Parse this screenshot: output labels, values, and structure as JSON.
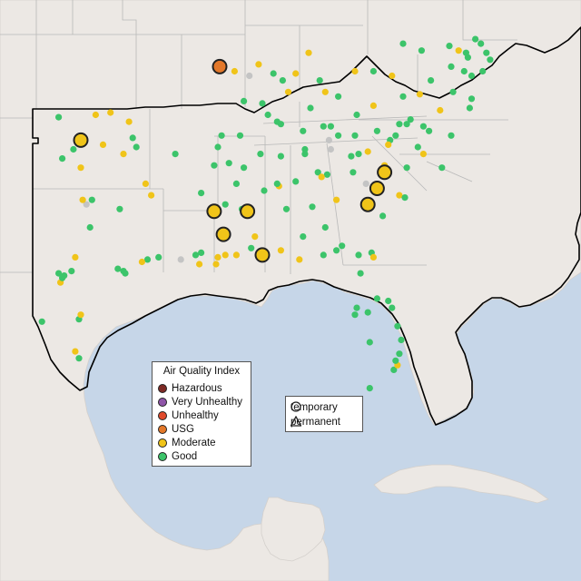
{
  "colors": {
    "water": "#c6d6e8",
    "land": "#ece8e4",
    "region_outline": "#000000",
    "state_border": "#b8b8b8",
    "marker_outline": "#222222"
  },
  "legend": {
    "title": "Air Quality Index",
    "categories": [
      {
        "label": "Hazardous",
        "color": "#7e2a25"
      },
      {
        "label": "Very Unhealthy",
        "color": "#8f55a8"
      },
      {
        "label": "Unhealthy",
        "color": "#e04a2c"
      },
      {
        "label": "USG",
        "color": "#e3782a"
      },
      {
        "label": "Moderate",
        "color": "#f0c419"
      },
      {
        "label": "Good",
        "color": "#3cc46a"
      }
    ]
  },
  "monitor_types": {
    "temporary": {
      "label": "temporary",
      "icon": "circle-icon"
    },
    "permanent": {
      "label": "permanent",
      "icon": "triangle-icon"
    }
  },
  "monitors": [
    {
      "lon": -97.4,
      "lat": 35.4,
      "aqi": "Moderate",
      "type": "temporary"
    },
    {
      "lon": -89.9,
      "lat": 38.6,
      "aqi": "USG",
      "type": "temporary"
    },
    {
      "lon": -81.0,
      "lat": 34.0,
      "aqi": "Moderate",
      "type": "temporary"
    },
    {
      "lon": -81.4,
      "lat": 33.3,
      "aqi": "Moderate",
      "type": "temporary"
    },
    {
      "lon": -81.9,
      "lat": 32.6,
      "aqi": "Moderate",
      "type": "temporary"
    },
    {
      "lon": -90.2,
      "lat": 32.3,
      "aqi": "Moderate",
      "type": "temporary"
    },
    {
      "lon": -88.4,
      "lat": 32.3,
      "aqi": "Moderate",
      "type": "temporary"
    },
    {
      "lon": -89.7,
      "lat": 31.3,
      "aqi": "Moderate",
      "type": "temporary"
    },
    {
      "lon": -87.6,
      "lat": 30.4,
      "aqi": "Moderate",
      "type": "temporary"
    },
    {
      "lon": -96.6,
      "lat": 36.5,
      "aqi": "Moderate"
    },
    {
      "lon": -95.8,
      "lat": 36.6,
      "aqi": "Moderate"
    },
    {
      "lon": -98.6,
      "lat": 36.4,
      "aqi": "Good"
    },
    {
      "lon": -94.8,
      "lat": 36.2,
      "aqi": "Moderate"
    },
    {
      "lon": -97.8,
      "lat": 35.0,
      "aqi": "Good"
    },
    {
      "lon": -96.2,
      "lat": 35.2,
      "aqi": "Moderate"
    },
    {
      "lon": -94.6,
      "lat": 35.5,
      "aqi": "Good"
    },
    {
      "lon": -94.4,
      "lat": 35.1,
      "aqi": "Good"
    },
    {
      "lon": -98.4,
      "lat": 34.6,
      "aqi": "Good"
    },
    {
      "lon": -97.4,
      "lat": 34.2,
      "aqi": "Moderate"
    },
    {
      "lon": -95.1,
      "lat": 34.8,
      "aqi": "Moderate"
    },
    {
      "lon": -92.3,
      "lat": 34.8,
      "aqi": "Good"
    },
    {
      "lon": -93.9,
      "lat": 33.5,
      "aqi": "Moderate"
    },
    {
      "lon": -93.6,
      "lat": 33.0,
      "aqi": "Moderate"
    },
    {
      "lon": -97.3,
      "lat": 32.8,
      "aqi": "Moderate"
    },
    {
      "lon": -97.1,
      "lat": 32.6,
      "aqi": "Unknown"
    },
    {
      "lon": -96.8,
      "lat": 32.8,
      "aqi": "Good"
    },
    {
      "lon": -95.3,
      "lat": 32.4,
      "aqi": "Good"
    },
    {
      "lon": -96.9,
      "lat": 31.6,
      "aqi": "Good"
    },
    {
      "lon": -97.7,
      "lat": 30.3,
      "aqi": "Moderate"
    },
    {
      "lon": -98.3,
      "lat": 29.5,
      "aqi": "Good"
    },
    {
      "lon": -98.4,
      "lat": 29.4,
      "aqi": "Good"
    },
    {
      "lon": -98.6,
      "lat": 29.6,
      "aqi": "Good"
    },
    {
      "lon": -98.5,
      "lat": 29.2,
      "aqi": "Moderate"
    },
    {
      "lon": -97.9,
      "lat": 29.7,
      "aqi": "Good"
    },
    {
      "lon": -95.4,
      "lat": 29.8,
      "aqi": "Good"
    },
    {
      "lon": -95.1,
      "lat": 29.7,
      "aqi": "Good"
    },
    {
      "lon": -95.0,
      "lat": 29.6,
      "aqi": "Good"
    },
    {
      "lon": -94.1,
      "lat": 30.1,
      "aqi": "Moderate"
    },
    {
      "lon": -93.8,
      "lat": 30.2,
      "aqi": "Good"
    },
    {
      "lon": -97.4,
      "lat": 27.8,
      "aqi": "Moderate"
    },
    {
      "lon": -97.5,
      "lat": 27.6,
      "aqi": "Good"
    },
    {
      "lon": -97.7,
      "lat": 26.2,
      "aqi": "Moderate"
    },
    {
      "lon": -97.5,
      "lat": 25.9,
      "aqi": "Good"
    },
    {
      "lon": -99.5,
      "lat": 27.5,
      "aqi": "Good"
    },
    {
      "lon": -93.2,
      "lat": 30.3,
      "aqi": "Good"
    },
    {
      "lon": -92.0,
      "lat": 30.2,
      "aqi": "Unknown"
    },
    {
      "lon": -91.2,
      "lat": 30.4,
      "aqi": "Good"
    },
    {
      "lon": -90.9,
      "lat": 30.5,
      "aqi": "Good"
    },
    {
      "lon": -90.1,
      "lat": 30.0,
      "aqi": "Moderate"
    },
    {
      "lon": -91.0,
      "lat": 30.0,
      "aqi": "Moderate"
    },
    {
      "lon": -90.0,
      "lat": 30.3,
      "aqi": "Moderate"
    },
    {
      "lon": -89.6,
      "lat": 30.4,
      "aqi": "Moderate"
    },
    {
      "lon": -89.0,
      "lat": 30.4,
      "aqi": "Moderate"
    },
    {
      "lon": -88.2,
      "lat": 30.7,
      "aqi": "Good"
    },
    {
      "lon": -88.0,
      "lat": 31.2,
      "aqi": "Moderate"
    },
    {
      "lon": -86.6,
      "lat": 30.6,
      "aqi": "Moderate"
    },
    {
      "lon": -85.6,
      "lat": 30.2,
      "aqi": "Moderate"
    },
    {
      "lon": -84.3,
      "lat": 30.4,
      "aqi": "Good"
    },
    {
      "lon": -83.6,
      "lat": 30.6,
      "aqi": "Good"
    },
    {
      "lon": -82.4,
      "lat": 30.4,
      "aqi": "Good"
    },
    {
      "lon": -81.6,
      "lat": 30.3,
      "aqi": "Moderate"
    },
    {
      "lon": -81.7,
      "lat": 30.5,
      "aqi": "Good"
    },
    {
      "lon": -82.3,
      "lat": 29.6,
      "aqi": "Good"
    },
    {
      "lon": -81.4,
      "lat": 28.5,
      "aqi": "Good"
    },
    {
      "lon": -81.9,
      "lat": 27.9,
      "aqi": "Good"
    },
    {
      "lon": -82.5,
      "lat": 28.1,
      "aqi": "Good"
    },
    {
      "lon": -82.6,
      "lat": 27.8,
      "aqi": "Good"
    },
    {
      "lon": -80.8,
      "lat": 28.4,
      "aqi": "Good"
    },
    {
      "lon": -80.6,
      "lat": 28.1,
      "aqi": "Good"
    },
    {
      "lon": -80.3,
      "lat": 27.3,
      "aqi": "Good"
    },
    {
      "lon": -81.8,
      "lat": 26.6,
      "aqi": "Good"
    },
    {
      "lon": -80.1,
      "lat": 26.7,
      "aqi": "Good"
    },
    {
      "lon": -80.2,
      "lat": 26.1,
      "aqi": "Good"
    },
    {
      "lon": -80.4,
      "lat": 25.8,
      "aqi": "Good"
    },
    {
      "lon": -80.3,
      "lat": 25.6,
      "aqi": "Moderate"
    },
    {
      "lon": -80.5,
      "lat": 25.4,
      "aqi": "Good"
    },
    {
      "lon": -81.8,
      "lat": 24.6,
      "aqi": "Good"
    },
    {
      "lon": -90.2,
      "lat": 34.3,
      "aqi": "Good"
    },
    {
      "lon": -89.4,
      "lat": 34.4,
      "aqi": "Good"
    },
    {
      "lon": -88.6,
      "lat": 34.2,
      "aqi": "Good"
    },
    {
      "lon": -89.0,
      "lat": 33.5,
      "aqi": "Good"
    },
    {
      "lon": -90.9,
      "lat": 33.1,
      "aqi": "Good"
    },
    {
      "lon": -89.6,
      "lat": 32.6,
      "aqi": "Good"
    },
    {
      "lon": -88.7,
      "lat": 32.4,
      "aqi": "Good"
    },
    {
      "lon": -86.8,
      "lat": 33.5,
      "aqi": "Good"
    },
    {
      "lon": -86.7,
      "lat": 33.4,
      "aqi": "Moderate"
    },
    {
      "lon": -87.5,
      "lat": 33.2,
      "aqi": "Good"
    },
    {
      "lon": -86.3,
      "lat": 32.4,
      "aqi": "Good"
    },
    {
      "lon": -85.8,
      "lat": 33.6,
      "aqi": "Good"
    },
    {
      "lon": -86.6,
      "lat": 34.7,
      "aqi": "Good"
    },
    {
      "lon": -87.7,
      "lat": 34.8,
      "aqi": "Good"
    },
    {
      "lon": -85.4,
      "lat": 31.2,
      "aqi": "Good"
    },
    {
      "lon": -84.4,
      "lat": 33.8,
      "aqi": "Moderate"
    },
    {
      "lon": -84.1,
      "lat": 33.9,
      "aqi": "Good"
    },
    {
      "lon": -84.6,
      "lat": 34.0,
      "aqi": "Good"
    },
    {
      "lon": -83.6,
      "lat": 32.8,
      "aqi": "Moderate"
    },
    {
      "lon": -84.9,
      "lat": 32.5,
      "aqi": "Good"
    },
    {
      "lon": -82.0,
      "lat": 33.5,
      "aqi": "Unknown"
    },
    {
      "lon": -81.1,
      "lat": 32.1,
      "aqi": "Good"
    },
    {
      "lon": -84.2,
      "lat": 31.6,
      "aqi": "Good"
    },
    {
      "lon": -83.3,
      "lat": 30.8,
      "aqi": "Good"
    },
    {
      "lon": -85.3,
      "lat": 34.8,
      "aqi": "Good"
    },
    {
      "lon": -86.8,
      "lat": 36.2,
      "aqi": "Good"
    },
    {
      "lon": -86.6,
      "lat": 36.1,
      "aqi": "Good"
    },
    {
      "lon": -90.0,
      "lat": 35.1,
      "aqi": "Good"
    },
    {
      "lon": -89.8,
      "lat": 35.6,
      "aqi": "Good"
    },
    {
      "lon": -88.8,
      "lat": 35.6,
      "aqi": "Good"
    },
    {
      "lon": -87.3,
      "lat": 36.5,
      "aqi": "Good"
    },
    {
      "lon": -85.4,
      "lat": 35.8,
      "aqi": "Good"
    },
    {
      "lon": -85.3,
      "lat": 35.0,
      "aqi": "Good"
    },
    {
      "lon": -83.9,
      "lat": 36.0,
      "aqi": "Good"
    },
    {
      "lon": -83.5,
      "lat": 35.6,
      "aqi": "Good"
    },
    {
      "lon": -82.5,
      "lat": 36.5,
      "aqi": "Good"
    },
    {
      "lon": -84.3,
      "lat": 36.0,
      "aqi": "Good"
    },
    {
      "lon": -82.6,
      "lat": 35.6,
      "aqi": "Good"
    },
    {
      "lon": -83.9,
      "lat": 35.0,
      "aqi": "Unknown"
    },
    {
      "lon": -84.0,
      "lat": 35.4,
      "aqi": "Unknown"
    },
    {
      "lon": -85.8,
      "lat": 38.3,
      "aqi": "Moderate"
    },
    {
      "lon": -84.5,
      "lat": 38.0,
      "aqi": "Good"
    },
    {
      "lon": -86.2,
      "lat": 37.5,
      "aqi": "Moderate"
    },
    {
      "lon": -87.6,
      "lat": 37.0,
      "aqi": "Good"
    },
    {
      "lon": -88.6,
      "lat": 37.1,
      "aqi": "Good"
    },
    {
      "lon": -83.5,
      "lat": 37.3,
      "aqi": "Good"
    },
    {
      "lon": -82.6,
      "lat": 38.4,
      "aqi": "Moderate"
    },
    {
      "lon": -84.2,
      "lat": 37.5,
      "aqi": "Moderate"
    },
    {
      "lon": -85.0,
      "lat": 36.8,
      "aqi": "Good"
    },
    {
      "lon": -89.1,
      "lat": 38.4,
      "aqi": "Moderate"
    },
    {
      "lon": -87.8,
      "lat": 38.7,
      "aqi": "Moderate"
    },
    {
      "lon": -86.5,
      "lat": 38.0,
      "aqi": "Good"
    },
    {
      "lon": -85.1,
      "lat": 39.2,
      "aqi": "Moderate"
    },
    {
      "lon": -87.0,
      "lat": 38.3,
      "aqi": "Good"
    },
    {
      "lon": -88.3,
      "lat": 38.2,
      "aqi": "Unknown"
    },
    {
      "lon": -81.6,
      "lat": 38.4,
      "aqi": "Good"
    },
    {
      "lon": -80.6,
      "lat": 38.2,
      "aqi": "Moderate"
    },
    {
      "lon": -80.0,
      "lat": 39.6,
      "aqi": "Good"
    },
    {
      "lon": -79.0,
      "lat": 39.3,
      "aqi": "Good"
    },
    {
      "lon": -77.5,
      "lat": 39.5,
      "aqi": "Good"
    },
    {
      "lon": -77.0,
      "lat": 39.3,
      "aqi": "Moderate"
    },
    {
      "lon": -76.6,
      "lat": 39.2,
      "aqi": "Good"
    },
    {
      "lon": -76.5,
      "lat": 39.0,
      "aqi": "Good"
    },
    {
      "lon": -75.5,
      "lat": 39.2,
      "aqi": "Good"
    },
    {
      "lon": -75.3,
      "lat": 38.9,
      "aqi": "Good"
    },
    {
      "lon": -77.4,
      "lat": 38.6,
      "aqi": "Good"
    },
    {
      "lon": -77.3,
      "lat": 37.5,
      "aqi": "Good"
    },
    {
      "lon": -76.3,
      "lat": 37.2,
      "aqi": "Good"
    },
    {
      "lon": -78.5,
      "lat": 38.0,
      "aqi": "Good"
    },
    {
      "lon": -80.0,
      "lat": 37.3,
      "aqi": "Good"
    },
    {
      "lon": -79.1,
      "lat": 37.4,
      "aqi": "Moderate"
    },
    {
      "lon": -81.6,
      "lat": 36.9,
      "aqi": "Moderate"
    },
    {
      "lon": -78.0,
      "lat": 36.7,
      "aqi": "Moderate"
    },
    {
      "lon": -76.4,
      "lat": 36.8,
      "aqi": "Good"
    },
    {
      "lon": -80.2,
      "lat": 36.1,
      "aqi": "Good"
    },
    {
      "lon": -79.8,
      "lat": 36.1,
      "aqi": "Good"
    },
    {
      "lon": -79.6,
      "lat": 36.3,
      "aqi": "Good"
    },
    {
      "lon": -78.9,
      "lat": 36.0,
      "aqi": "Good"
    },
    {
      "lon": -78.6,
      "lat": 35.8,
      "aqi": "Good"
    },
    {
      "lon": -80.8,
      "lat": 35.2,
      "aqi": "Moderate"
    },
    {
      "lon": -80.7,
      "lat": 35.4,
      "aqi": "Good"
    },
    {
      "lon": -80.4,
      "lat": 35.6,
      "aqi": "Good"
    },
    {
      "lon": -81.4,
      "lat": 35.8,
      "aqi": "Good"
    },
    {
      "lon": -77.4,
      "lat": 35.6,
      "aqi": "Good"
    },
    {
      "lon": -77.9,
      "lat": 34.2,
      "aqi": "Good"
    },
    {
      "lon": -79.2,
      "lat": 35.1,
      "aqi": "Good"
    },
    {
      "lon": -78.9,
      "lat": 34.8,
      "aqi": "Moderate"
    },
    {
      "lon": -82.4,
      "lat": 34.8,
      "aqi": "Good"
    },
    {
      "lon": -81.9,
      "lat": 34.9,
      "aqi": "Moderate"
    },
    {
      "lon": -82.8,
      "lat": 34.7,
      "aqi": "Good"
    },
    {
      "lon": -81.0,
      "lat": 34.3,
      "aqi": "Moderate"
    },
    {
      "lon": -79.8,
      "lat": 34.2,
      "aqi": "Good"
    },
    {
      "lon": -79.9,
      "lat": 32.9,
      "aqi": "Good"
    },
    {
      "lon": -80.2,
      "lat": 33.0,
      "aqi": "Moderate"
    },
    {
      "lon": -82.7,
      "lat": 34.0,
      "aqi": "Good"
    },
    {
      "lon": -76.3,
      "lat": 38.2,
      "aqi": "Good"
    },
    {
      "lon": -76.7,
      "lat": 38.4,
      "aqi": "Good"
    },
    {
      "lon": -75.8,
      "lat": 39.6,
      "aqi": "Good"
    },
    {
      "lon": -76.1,
      "lat": 39.8,
      "aqi": "Good"
    },
    {
      "lon": -75.7,
      "lat": 38.4,
      "aqi": "Good"
    }
  ]
}
